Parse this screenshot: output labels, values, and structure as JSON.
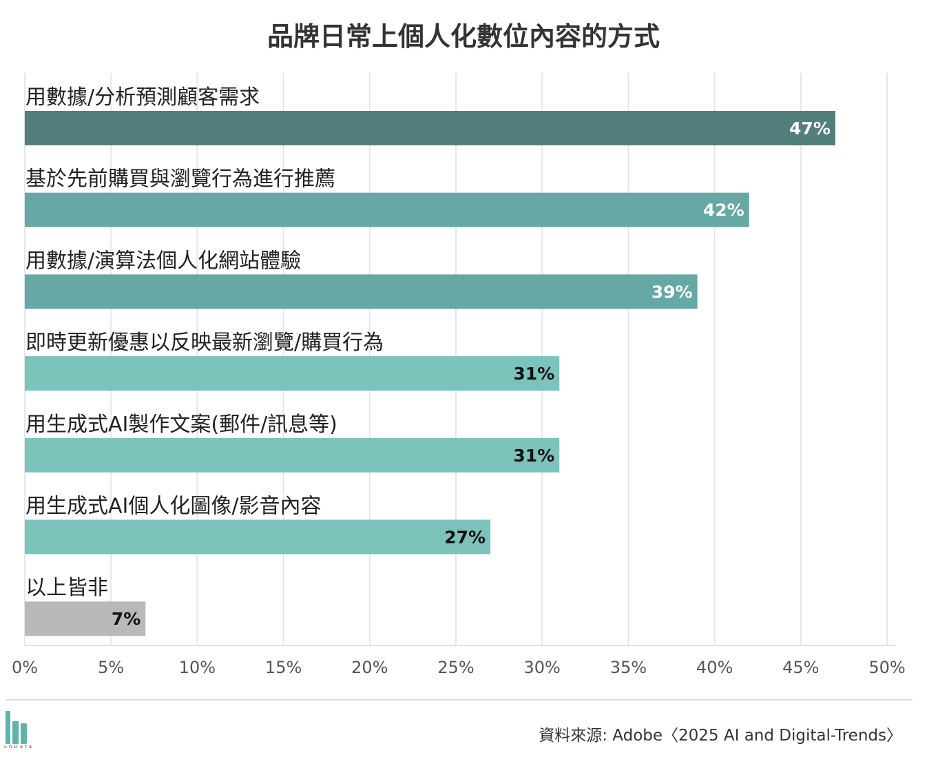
{
  "chart_data": {
    "type": "bar",
    "orientation": "horizontal",
    "title": "品牌日常上個人化數位內容的方式",
    "categories": [
      "用數據/分析預測顧客需求",
      "基於先前購買與瀏覽行為進行推薦",
      "用數據/演算法個人化網站體驗",
      "即時更新優惠以反映最新瀏覽/購買行為",
      "用生成式AI製作文案(郵件/訊息等)",
      "用生成式AI個人化圖像/影音內容",
      "以上皆非"
    ],
    "values": [
      47,
      42,
      39,
      31,
      31,
      27,
      7
    ],
    "value_labels": [
      "47%",
      "42%",
      "39%",
      "31%",
      "31%",
      "27%",
      "7%"
    ],
    "colors": [
      "#527e7b",
      "#66a8a5",
      "#66a8a5",
      "#7cc3bb",
      "#7cc3bb",
      "#7cc3bb",
      "#b7b9bb"
    ],
    "label_colors": [
      "#ffffff",
      "#ffffff",
      "#ffffff",
      "#111111",
      "#111111",
      "#111111",
      "#111111"
    ],
    "xlim": [
      0,
      50
    ],
    "xticks": [
      0,
      5,
      10,
      15,
      20,
      25,
      30,
      35,
      40,
      45,
      50
    ],
    "xtick_labels": [
      "0%",
      "5%",
      "10%",
      "15%",
      "20%",
      "25%",
      "30%",
      "35%",
      "40%",
      "45%",
      "50%"
    ],
    "grid": true,
    "xlabel": "",
    "ylabel": ""
  },
  "footer": {
    "source": "資料來源: Adobe〈2025 AI and Digital-Trends〉",
    "logo_text": "LnData"
  }
}
